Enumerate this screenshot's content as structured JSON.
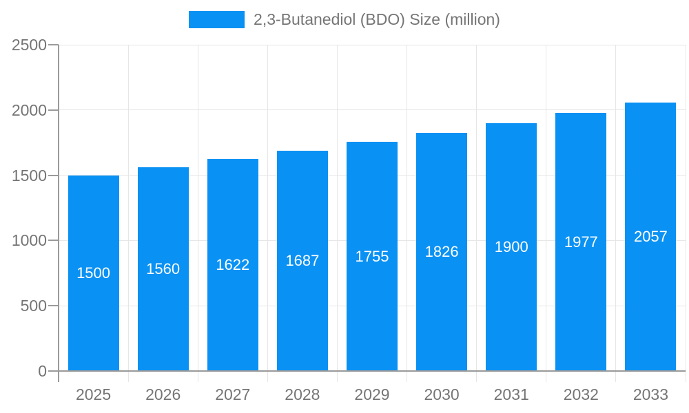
{
  "chart_data": {
    "type": "bar",
    "legend": "2,3-Butanediol (BDO) Size (million)",
    "categories": [
      "2025",
      "2026",
      "2027",
      "2028",
      "2029",
      "2030",
      "2031",
      "2032",
      "2033"
    ],
    "values": [
      1500,
      1560,
      1622,
      1687,
      1755,
      1826,
      1900,
      1977,
      2057
    ],
    "value_labels": [
      "1500",
      "1560",
      "1622",
      "1687",
      "1755",
      "1826",
      "1900",
      "1977",
      "2057"
    ],
    "ylim": [
      0,
      2500
    ],
    "yticks": [
      0,
      500,
      1000,
      1500,
      2000,
      2500
    ],
    "grid": true,
    "legend_position": "top",
    "colors": {
      "bar": "#0991f4",
      "bar_value_text": "#ffffff",
      "axis_text": "#757575",
      "gridline": "#e6e6e6",
      "axis_line": "#9a9a9a",
      "background": "#ffffff"
    }
  }
}
